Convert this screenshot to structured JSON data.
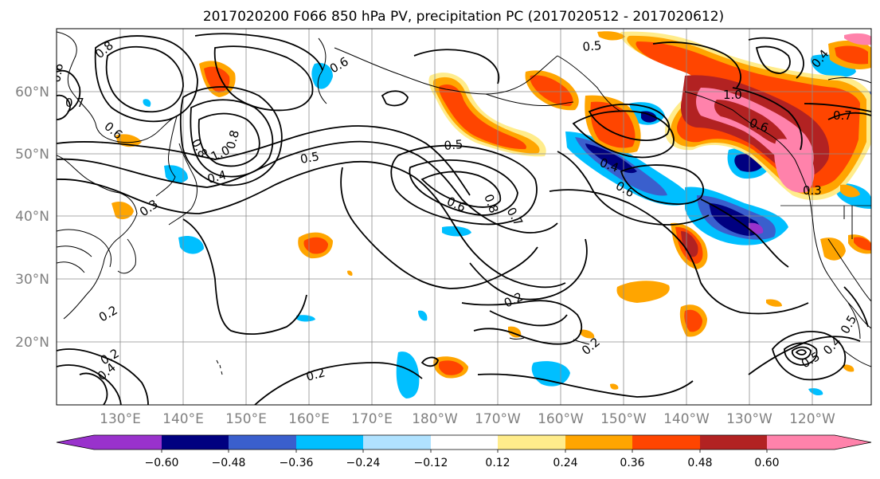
{
  "title": "2017020200 F066 850 hPa PV, precipitation PC (2017020512 - 2017020612)",
  "lat_labels": [
    "60°N",
    "50°N",
    "40°N",
    "30°N",
    "20°N"
  ],
  "lon_labels": [
    "130°E",
    "140°E",
    "150°E",
    "160°E",
    "170°E",
    "180°W",
    "170°W",
    "160°W",
    "150°W",
    "140°W",
    "130°W",
    "120°W"
  ],
  "colorbar": {
    "ticks": [
      "−0.60",
      "−0.48",
      "−0.36",
      "−0.24",
      "−0.12",
      "0.12",
      "0.24",
      "0.36",
      "0.48",
      "0.60"
    ],
    "colors": [
      "#9932cc",
      "#000080",
      "#3a5fcd",
      "#00bfff",
      "#b0e2ff",
      "#ffffff",
      "#ffec8b",
      "#ffa500",
      "#ff4500",
      "#b22222",
      "#ff82ab"
    ]
  },
  "contour_labels": [
    "0.8",
    "0.6",
    "0.7",
    "0.6",
    "0.6",
    "0.5",
    "1.0",
    "0.8",
    "0.8",
    "0.4",
    "0.5",
    "0.5",
    "0.3",
    "0.6",
    "0.8",
    "0.7",
    "0.2",
    "0.2",
    "0.2",
    "0.2",
    "0.4",
    "0.2",
    "0.5",
    "0.4",
    "0.6",
    "1.0",
    "0.6",
    "0.7",
    "0.4",
    "0.3",
    "0.5",
    "0.4"
  ]
}
